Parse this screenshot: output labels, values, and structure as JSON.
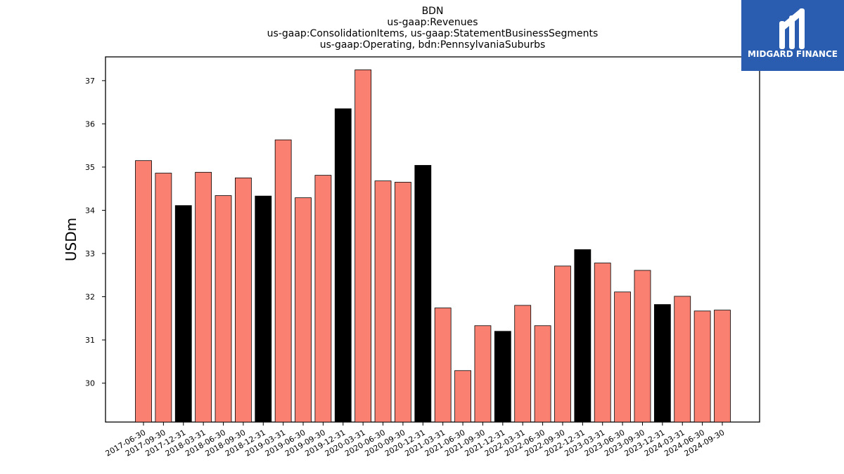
{
  "chart_data": {
    "type": "bar",
    "title": [
      "BDN",
      "us-gaap:Revenues",
      "us-gaap:ConsolidationItems, us-gaap:StatementBusinessSegments",
      "us-gaap:Operating, bdn:PennsylvaniaSuburbs"
    ],
    "xlabel": "",
    "ylabel": "USDm",
    "ylim": [
      29.1,
      37.55
    ],
    "yticks": [
      30,
      31,
      32,
      33,
      34,
      35,
      36,
      37
    ],
    "grid": false,
    "categories": [
      "2017-06-30",
      "2017-09-30",
      "2017-12-31",
      "2018-03-31",
      "2018-06-30",
      "2018-09-30",
      "2018-12-31",
      "2019-03-31",
      "2019-06-30",
      "2019-09-30",
      "2019-12-31",
      "2020-03-31",
      "2020-06-30",
      "2020-09-30",
      "2020-12-31",
      "2021-03-31",
      "2021-06-30",
      "2021-09-30",
      "2021-12-31",
      "2022-03-31",
      "2022-06-30",
      "2022-09-30",
      "2022-12-31",
      "2023-03-31",
      "2023-06-30",
      "2023-09-30",
      "2023-12-31",
      "2024-03-31",
      "2024-06-30",
      "2024-09-30"
    ],
    "values": [
      35.15,
      34.86,
      34.11,
      34.88,
      34.34,
      34.75,
      34.33,
      35.63,
      34.29,
      34.81,
      36.35,
      37.25,
      34.68,
      34.65,
      35.04,
      31.74,
      30.29,
      31.33,
      31.2,
      31.8,
      31.33,
      32.71,
      33.09,
      32.78,
      32.11,
      32.61,
      31.82,
      32.01,
      31.67,
      31.69
    ],
    "bar_colors": [
      "#fa8072",
      "#fa8072",
      "#000000",
      "#fa8072",
      "#fa8072",
      "#fa8072",
      "#000000",
      "#fa8072",
      "#fa8072",
      "#fa8072",
      "#000000",
      "#fa8072",
      "#fa8072",
      "#fa8072",
      "#000000",
      "#fa8072",
      "#fa8072",
      "#fa8072",
      "#000000",
      "#fa8072",
      "#fa8072",
      "#fa8072",
      "#000000",
      "#fa8072",
      "#fa8072",
      "#fa8072",
      "#000000",
      "#fa8072",
      "#fa8072",
      "#fa8072"
    ]
  },
  "logo": {
    "text": "MIDGARD FINANCE",
    "background": "#2a5db0"
  }
}
